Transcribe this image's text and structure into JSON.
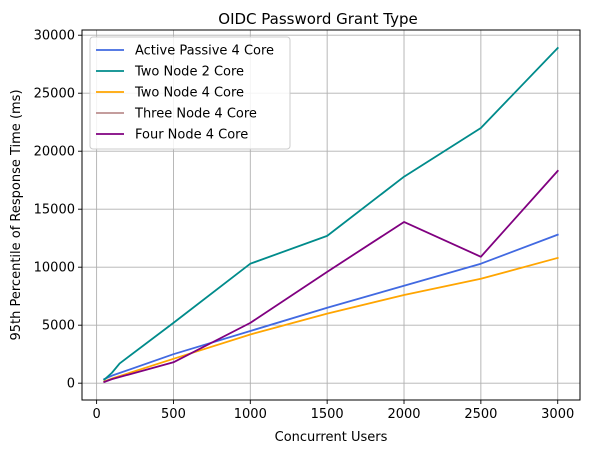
{
  "chart_data": {
    "type": "line",
    "title": "OIDC Password Grant Type",
    "xlabel": "Concurrent Users",
    "ylabel": "95th Percentile of Response Time (ms)",
    "xlim": [
      -95,
      3145
    ],
    "ylim": [
      -1450,
      30450
    ],
    "x_ticks": [
      0,
      500,
      1000,
      1500,
      2000,
      2500,
      3000
    ],
    "y_ticks": [
      0,
      5000,
      10000,
      15000,
      20000,
      25000,
      30000
    ],
    "grid": true,
    "legend_position": "upper-left",
    "series": [
      {
        "name": "Active Passive 4 Core",
        "color": "#4169e1",
        "x": [
          50,
          100,
          500,
          1000,
          1500,
          2000,
          2500,
          3000
        ],
        "y": [
          350,
          650,
          2500,
          4500,
          6500,
          8400,
          10300,
          12800
        ]
      },
      {
        "name": "Two Node 2 Core",
        "color": "#008b8b",
        "x": [
          50,
          100,
          150,
          500,
          1000,
          1500,
          2000,
          2500,
          3000
        ],
        "y": [
          300,
          900,
          1700,
          5200,
          10300,
          12700,
          17800,
          22000,
          28900
        ]
      },
      {
        "name": "Two Node 4 Core",
        "color": "#ffa500",
        "x": [
          50,
          100,
          500,
          1000,
          1500,
          2000,
          2500,
          3000
        ],
        "y": [
          150,
          400,
          2100,
          4200,
          6000,
          7600,
          9000,
          10800
        ]
      },
      {
        "name": "Three Node 4 Core",
        "color": "#bc8f8f",
        "x": [],
        "y": []
      },
      {
        "name": "Four Node 4 Core",
        "color": "#800080",
        "x": [
          50,
          100,
          500,
          1000,
          1500,
          2000,
          2500,
          3000
        ],
        "y": [
          100,
          350,
          1800,
          5200,
          9600,
          13900,
          10900,
          18300
        ]
      }
    ]
  }
}
